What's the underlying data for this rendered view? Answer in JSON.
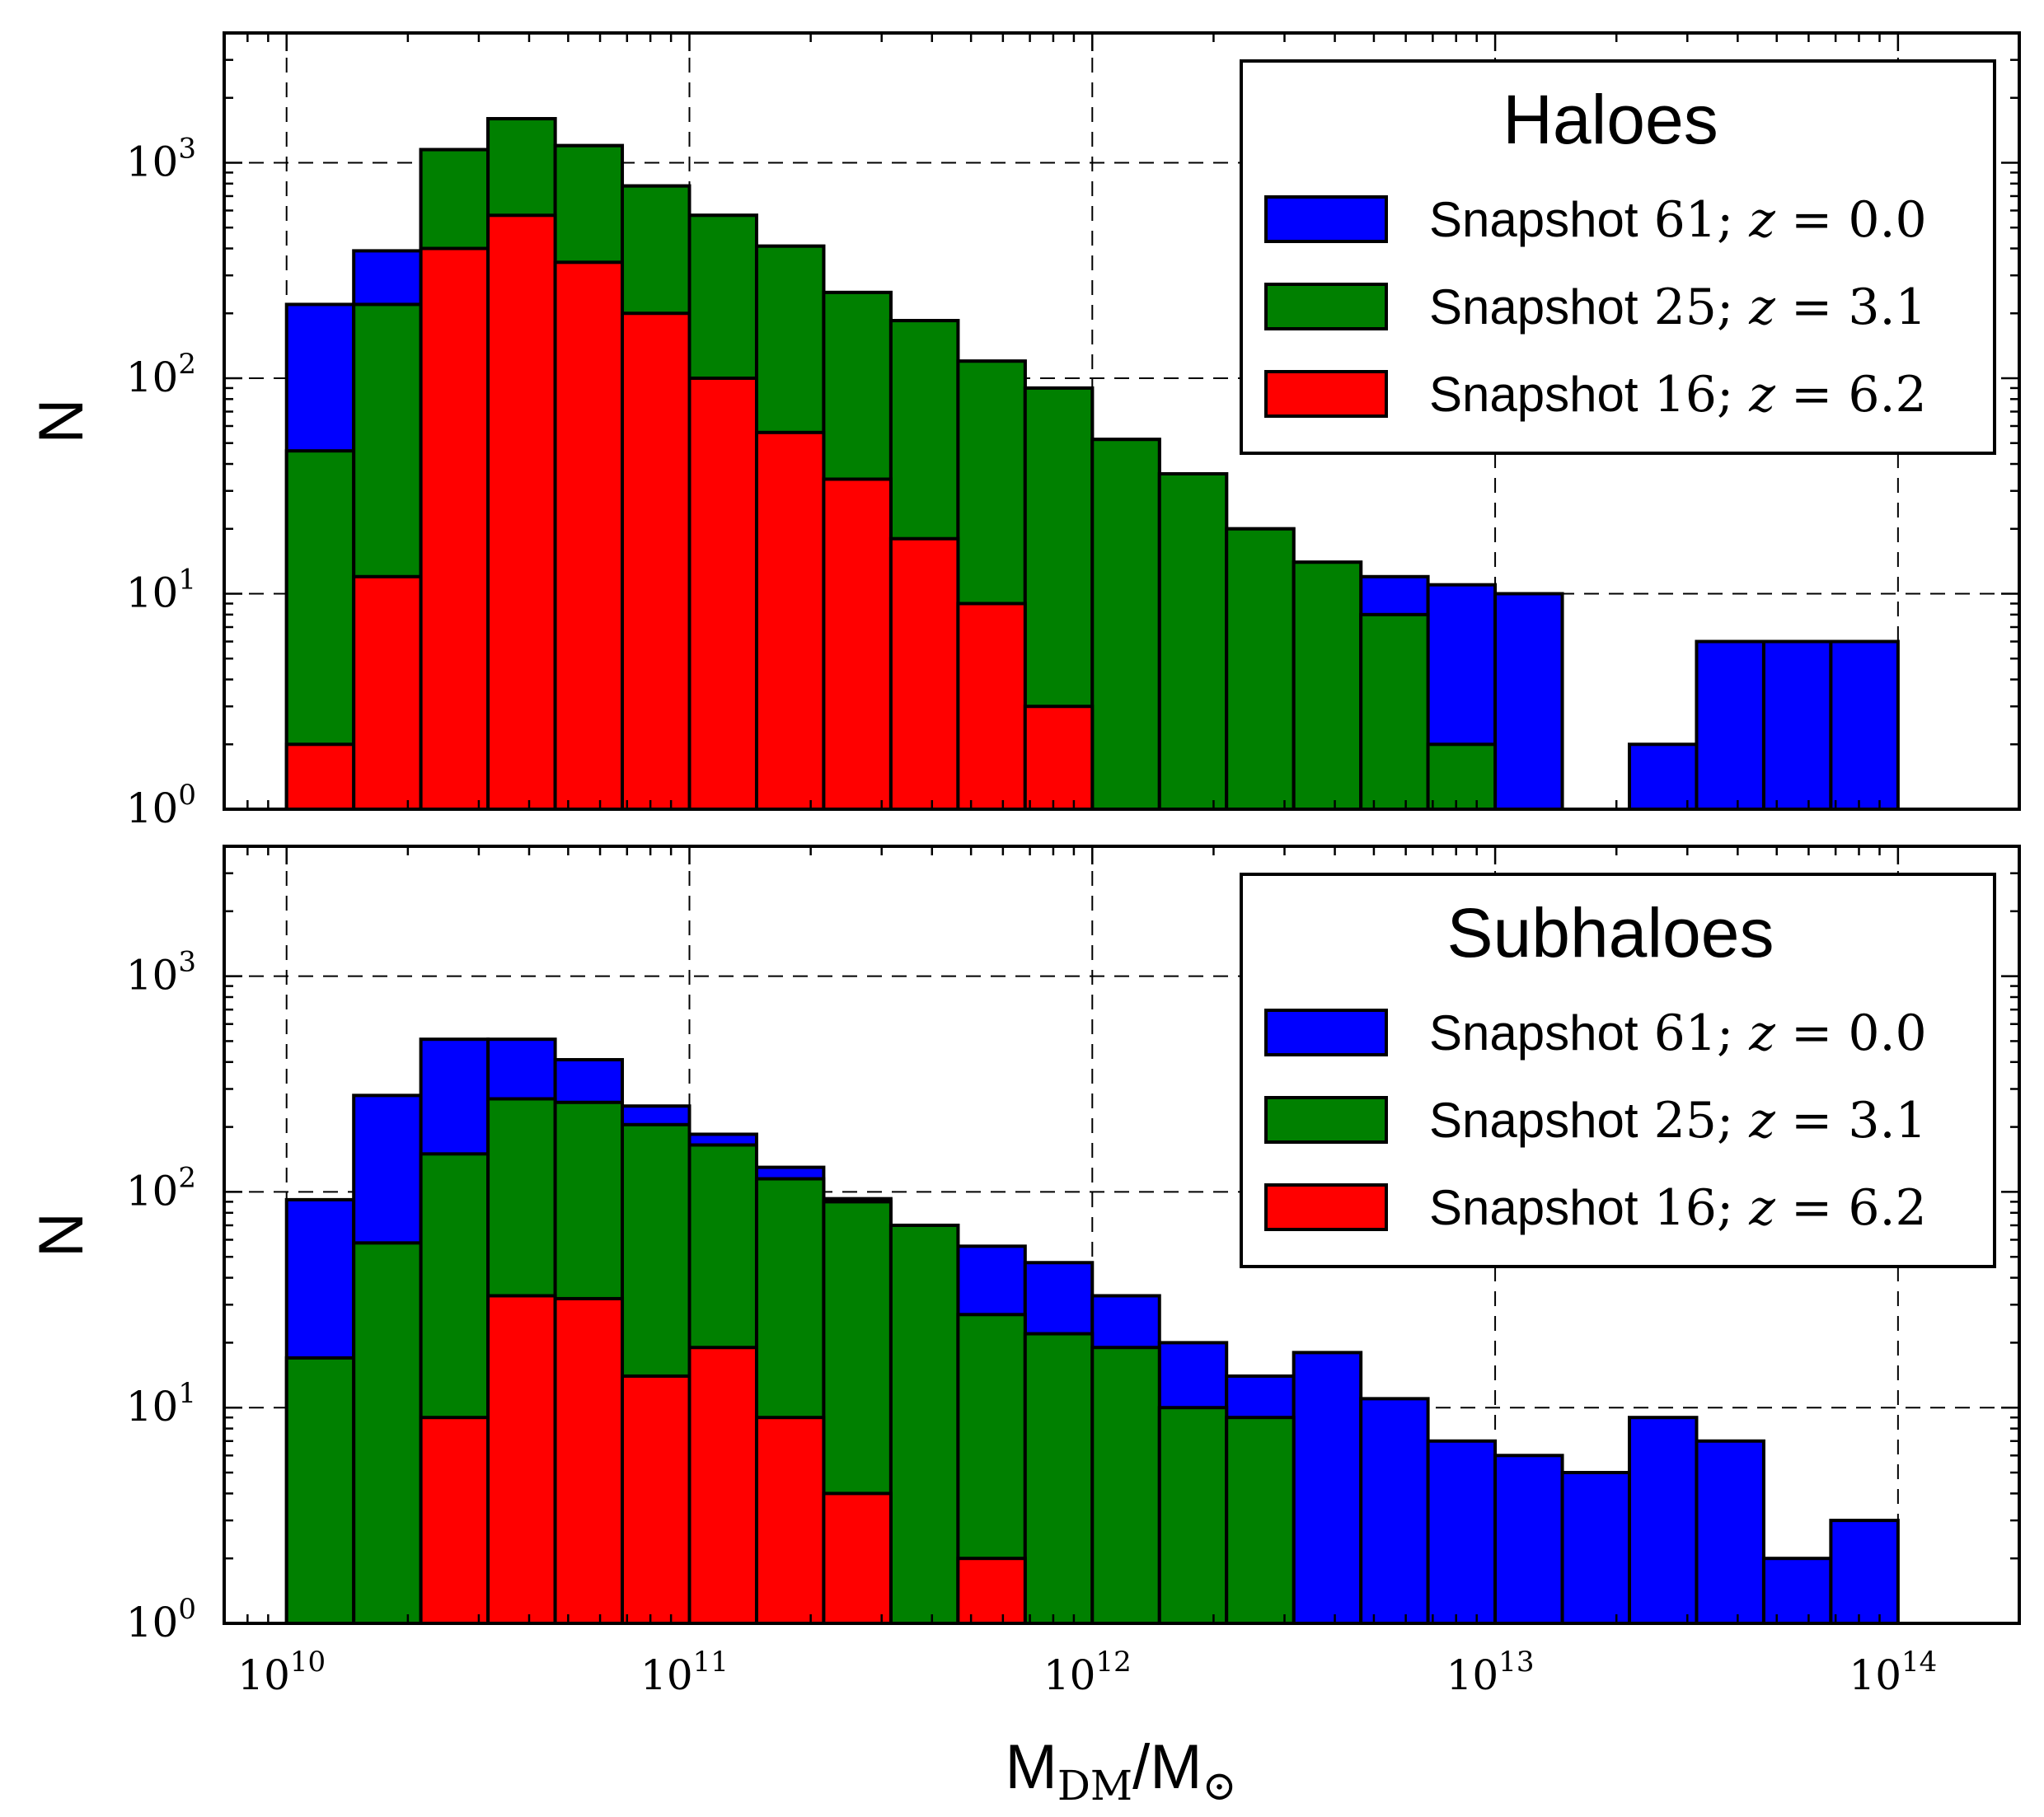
{
  "chart_data": [
    {
      "type": "bar",
      "panel": "top",
      "legend_title": "Haloes",
      "ylabel": "N",
      "yscale": "log",
      "ylim": [
        1,
        4000
      ],
      "xscale": "log",
      "xlim": [
        7000000000.0,
        200000000000000.0
      ],
      "grid": true,
      "legend_position": "top-right",
      "bin_edges_log10": [
        10.0,
        10.1667,
        10.3333,
        10.5,
        10.6667,
        10.8333,
        11.0,
        11.1667,
        11.3333,
        11.5,
        11.6667,
        11.8333,
        12.0,
        12.1667,
        12.3333,
        12.5,
        12.6667,
        12.8333,
        13.0,
        13.1667,
        13.3333,
        13.5,
        13.6667,
        13.8333,
        14.0
      ],
      "series": [
        {
          "name": "Snapshot 61; z = 0.0",
          "label_prefix": "Snapshot",
          "label_num": "61",
          "label_z": "0.0",
          "color": "#0000ff",
          "values": [
            220,
            390,
            1150,
            1600,
            1200,
            780,
            570,
            410,
            250,
            185,
            120,
            90,
            52,
            36,
            20,
            14,
            12,
            11,
            10,
            0,
            2,
            6,
            6,
            6
          ]
        },
        {
          "name": "Snapshot 25; z = 3.1",
          "label_prefix": "Snapshot",
          "label_num": "25",
          "label_z": "3.1",
          "color": "#008000",
          "values": [
            46,
            220,
            1150,
            1600,
            1200,
            780,
            570,
            410,
            250,
            185,
            120,
            90,
            52,
            36,
            20,
            14,
            8,
            2,
            0,
            0,
            0,
            0,
            0,
            0
          ]
        },
        {
          "name": "Snapshot 16; z = 6.2",
          "label_prefix": "Snapshot",
          "label_num": "16",
          "label_z": "6.2",
          "color": "#ff0000",
          "values": [
            2,
            12,
            400,
            570,
            345,
            200,
            100,
            56,
            34,
            18,
            9,
            3,
            0,
            0,
            0,
            0,
            0,
            0,
            0,
            0,
            0,
            0,
            0,
            0
          ]
        }
      ],
      "y_ticks": [
        {
          "base": "10",
          "exp": "0",
          "value": 1
        },
        {
          "base": "10",
          "exp": "1",
          "value": 10
        },
        {
          "base": "10",
          "exp": "2",
          "value": 100
        },
        {
          "base": "10",
          "exp": "3",
          "value": 1000
        }
      ]
    },
    {
      "type": "bar",
      "panel": "bottom",
      "legend_title": "Subhaloes",
      "ylabel": "N",
      "yscale": "log",
      "ylim": [
        1,
        4000
      ],
      "xscale": "log",
      "xlim": [
        7000000000.0,
        200000000000000.0
      ],
      "grid": true,
      "legend_position": "top-right",
      "bin_edges_log10": [
        10.0,
        10.1667,
        10.3333,
        10.5,
        10.6667,
        10.8333,
        11.0,
        11.1667,
        11.3333,
        11.5,
        11.6667,
        11.8333,
        12.0,
        12.1667,
        12.3333,
        12.5,
        12.6667,
        12.8333,
        13.0,
        13.1667,
        13.3333,
        13.5,
        13.6667,
        13.8333,
        14.0
      ],
      "series": [
        {
          "name": "Snapshot 61; z = 0.0",
          "label_prefix": "Snapshot",
          "label_num": "61",
          "label_z": "0.0",
          "color": "#0000ff",
          "values": [
            92,
            280,
            510,
            510,
            410,
            250,
            185,
            130,
            93,
            70,
            56,
            47,
            33,
            20,
            14,
            18,
            11,
            7,
            6,
            5,
            9,
            7,
            2,
            3
          ]
        },
        {
          "name": "Snapshot 25; z = 3.1",
          "label_prefix": "Snapshot",
          "label_num": "25",
          "label_z": "3.1",
          "color": "#008000",
          "values": [
            17,
            58,
            150,
            270,
            260,
            205,
            165,
            115,
            90,
            70,
            27,
            22,
            19,
            10,
            9,
            0,
            0,
            0,
            0,
            0,
            0,
            0,
            0,
            0
          ]
        },
        {
          "name": "Snapshot 16; z = 6.2",
          "label_prefix": "Snapshot",
          "label_num": "16",
          "label_z": "6.2",
          "color": "#ff0000",
          "values": [
            0,
            0,
            9,
            33,
            32,
            14,
            19,
            9,
            4,
            0,
            2,
            0,
            0,
            0,
            0,
            0,
            0,
            0,
            0,
            0,
            0,
            0,
            0,
            0
          ]
        }
      ],
      "y_ticks": [
        {
          "base": "10",
          "exp": "0",
          "value": 1
        },
        {
          "base": "10",
          "exp": "1",
          "value": 10
        },
        {
          "base": "10",
          "exp": "2",
          "value": 100
        },
        {
          "base": "10",
          "exp": "3",
          "value": 1000
        }
      ]
    }
  ],
  "x_axis": {
    "label_main": "M",
    "label_sub": "DM",
    "label_slash": "/M",
    "label_sub2": "⊙",
    "ticks": [
      {
        "base": "10",
        "exp": "10",
        "value": 10000000000.0
      },
      {
        "base": "10",
        "exp": "11",
        "value": 100000000000.0
      },
      {
        "base": "10",
        "exp": "12",
        "value": 1000000000000.0
      },
      {
        "base": "10",
        "exp": "13",
        "value": 10000000000000.0
      },
      {
        "base": "10",
        "exp": "14",
        "value": 100000000000000.0
      }
    ]
  }
}
